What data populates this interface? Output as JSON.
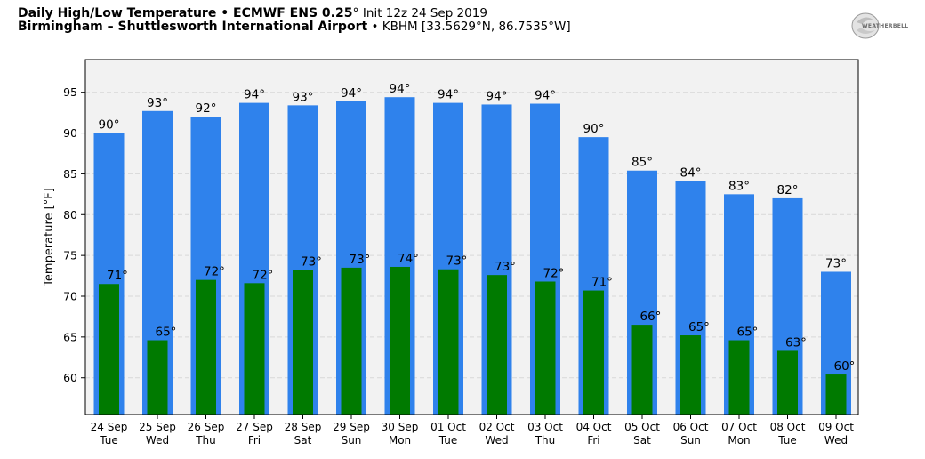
{
  "header": {
    "title_bold": "Daily High/Low Temperature • ECMWF ENS 0.25",
    "title_deg": "°",
    "title_init": "Init 12z 24 Sep 2019",
    "station_bold": "Birmingham – Shuttlesworth International Airport",
    "station_sep": " • ",
    "station_meta": "KBHM [33.5629°N, 86.7535°W]"
  },
  "logo": {
    "text": "WEATHERBELL",
    "icon": "weatherbell-logo"
  },
  "colors": {
    "high": "#2f82ec",
    "low": "#007a00",
    "plot_bg": "#f2f2f2",
    "grid": "#d8d8d8"
  },
  "chart_data": {
    "type": "bar",
    "ylabel": "Temperature [°F]",
    "ylim": [
      55.5,
      99
    ],
    "yticks": [
      60,
      65,
      70,
      75,
      80,
      85,
      90,
      95
    ],
    "grid": true,
    "categories": [
      [
        "24 Sep",
        "Tue"
      ],
      [
        "25 Sep",
        "Wed"
      ],
      [
        "26 Sep",
        "Thu"
      ],
      [
        "27 Sep",
        "Fri"
      ],
      [
        "28 Sep",
        "Sat"
      ],
      [
        "29 Sep",
        "Sun"
      ],
      [
        "30 Sep",
        "Mon"
      ],
      [
        "01 Oct",
        "Tue"
      ],
      [
        "02 Oct",
        "Wed"
      ],
      [
        "03 Oct",
        "Thu"
      ],
      [
        "04 Oct",
        "Fri"
      ],
      [
        "05 Oct",
        "Sat"
      ],
      [
        "06 Oct",
        "Sun"
      ],
      [
        "07 Oct",
        "Mon"
      ],
      [
        "08 Oct",
        "Tue"
      ],
      [
        "09 Oct",
        "Wed"
      ]
    ],
    "series": [
      {
        "key": "high",
        "values": [
          90.0,
          92.7,
          92.0,
          93.7,
          93.4,
          93.9,
          94.4,
          93.7,
          93.5,
          93.6,
          89.5,
          85.4,
          84.1,
          82.5,
          82.0,
          73.0
        ],
        "labels": [
          "90°",
          "93°",
          "92°",
          "94°",
          "93°",
          "94°",
          "94°",
          "94°",
          "94°",
          "94°",
          "90°",
          "85°",
          "84°",
          "83°",
          "82°",
          "73°"
        ]
      },
      {
        "key": "low",
        "values": [
          71.5,
          64.6,
          72.0,
          71.6,
          73.2,
          73.5,
          73.6,
          73.3,
          72.6,
          71.8,
          70.7,
          66.5,
          65.2,
          64.6,
          63.3,
          60.4
        ],
        "labels": [
          "71°",
          "65°",
          "72°",
          "72°",
          "73°",
          "73°",
          "74°",
          "73°",
          "73°",
          "72°",
          "71°",
          "66°",
          "65°",
          "65°",
          "63°",
          "60°"
        ]
      }
    ]
  }
}
